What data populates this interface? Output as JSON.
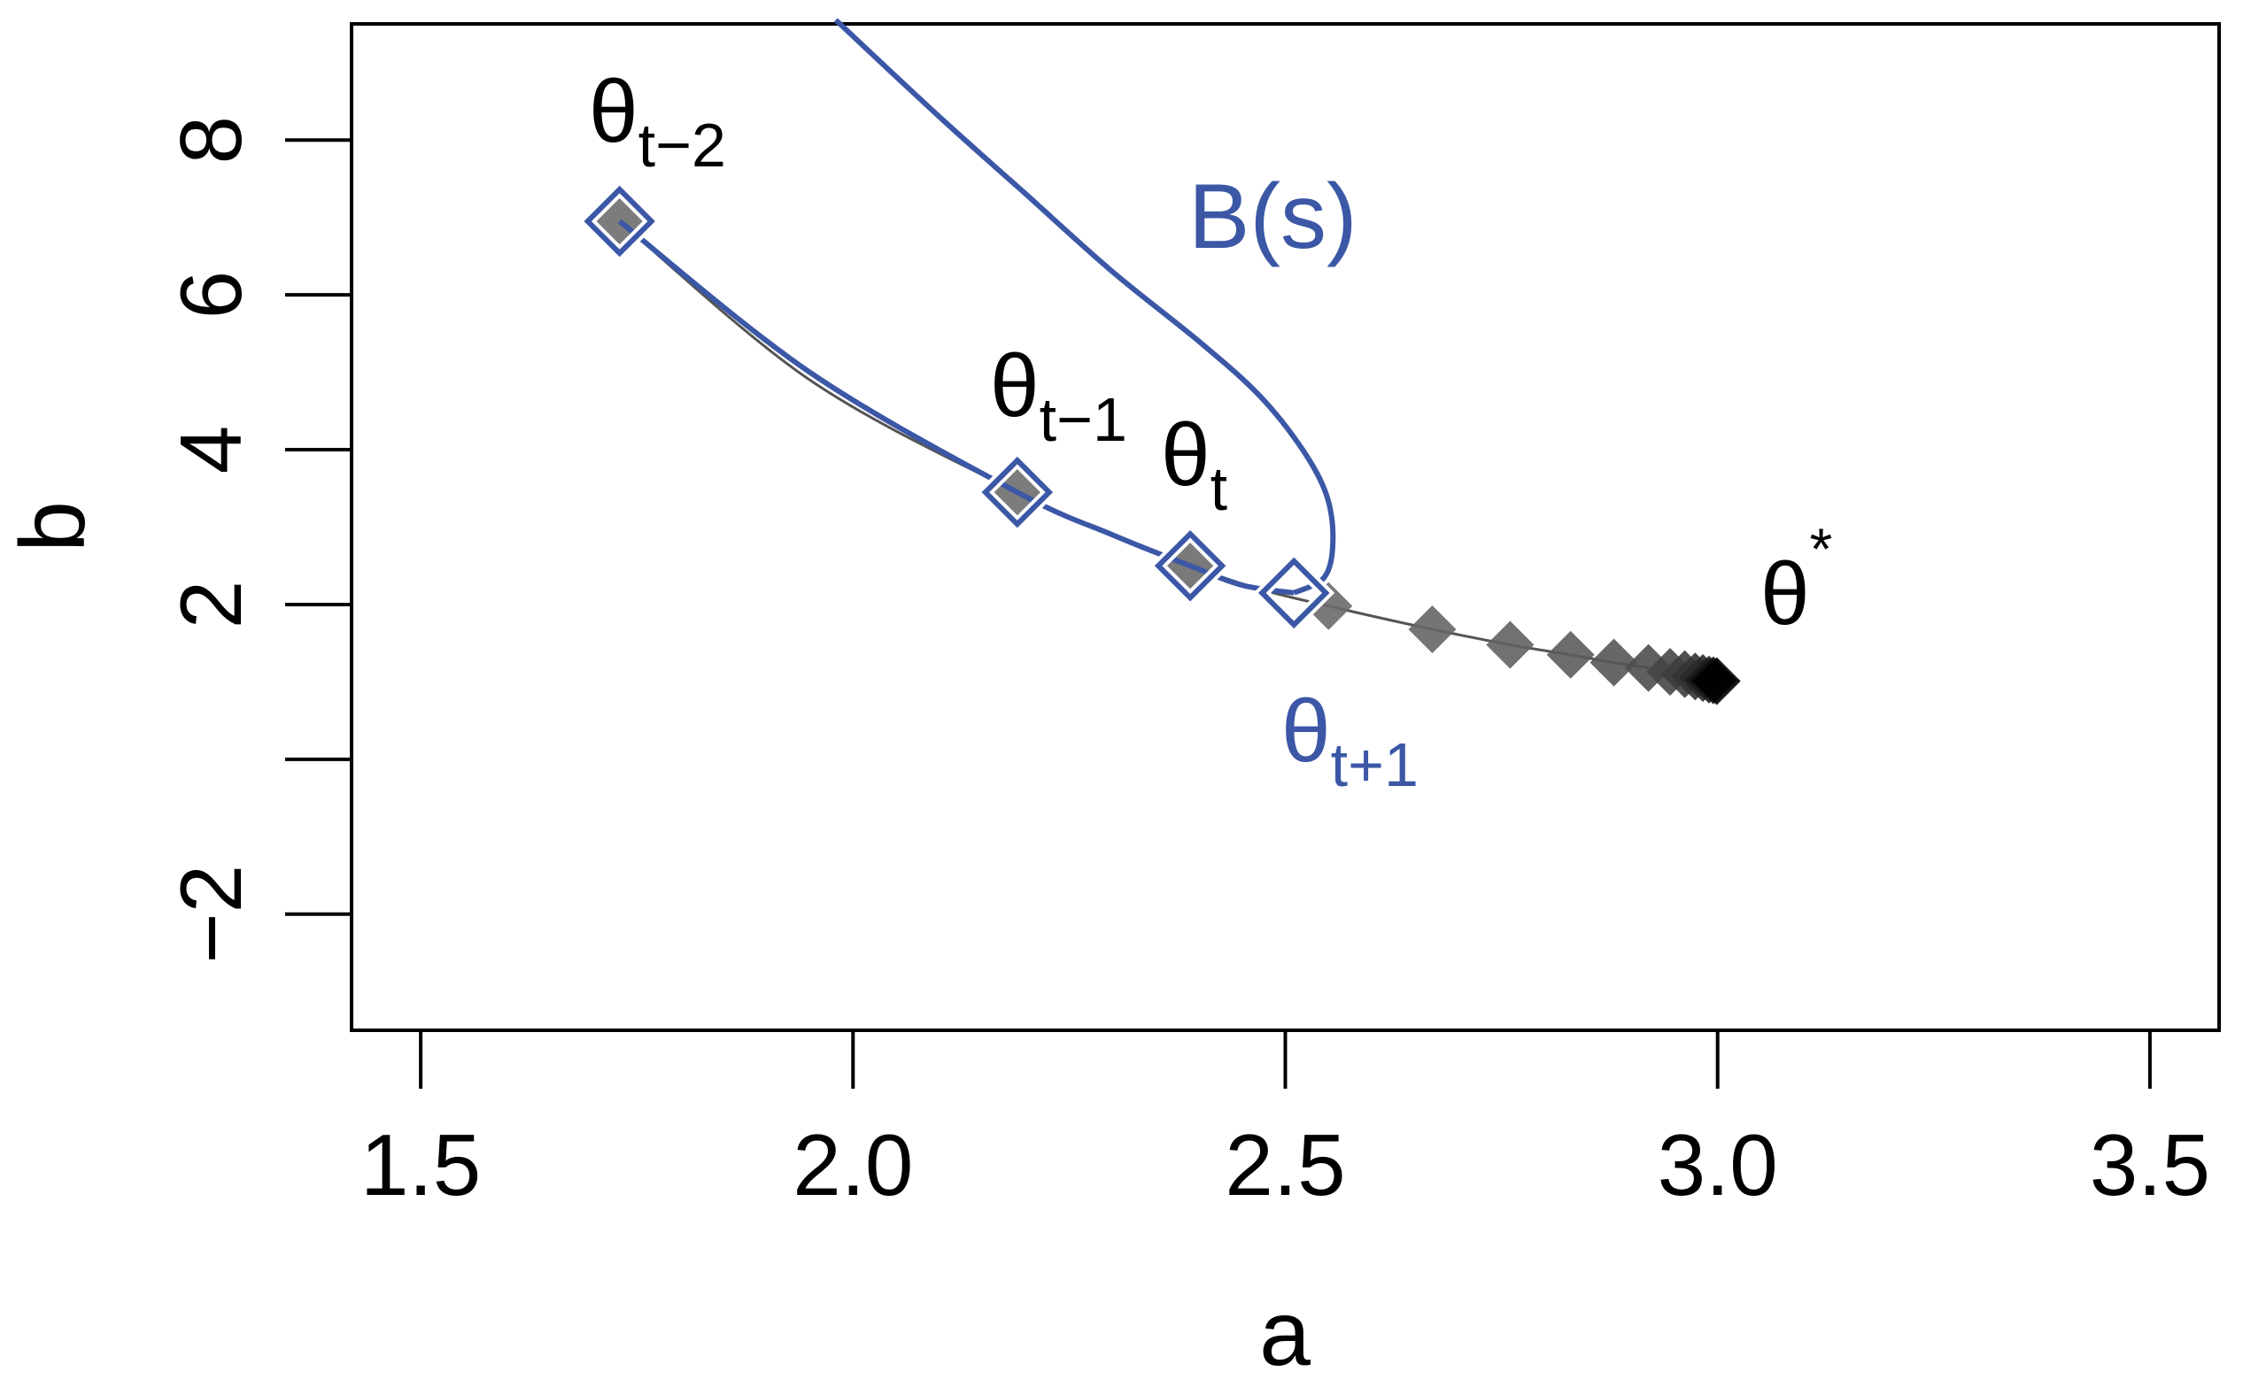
{
  "chart_data": {
    "type": "scatter",
    "title": "",
    "xlabel": "a",
    "ylabel": "b",
    "xlim": [
      1.42,
      3.58
    ],
    "ylim": [
      -3.5,
      9.5
    ],
    "x_ticks": [
      1.5,
      2.0,
      2.5,
      3.0,
      3.5
    ],
    "x_tick_labels": [
      "1.5",
      "2.0",
      "2.5",
      "3.0",
      "3.5"
    ],
    "y_ticks": [
      -2,
      0,
      2,
      4,
      6,
      8
    ],
    "y_tick_labels": [
      "−2",
      "",
      "2",
      "4",
      "6",
      "8"
    ],
    "grid": false,
    "colors": {
      "accent": "#3b57a6",
      "iterate": "#6e6e6e",
      "path_line": "#555555",
      "converged": "#000000"
    },
    "iterates": {
      "x": [
        1.73,
        2.19,
        2.39,
        2.55,
        2.67,
        2.76,
        2.83,
        2.88,
        2.92,
        2.945,
        2.962,
        2.974,
        2.983,
        2.99,
        2.995,
        2.999
      ],
      "y": [
        6.95,
        3.45,
        2.5,
        1.98,
        1.68,
        1.48,
        1.35,
        1.25,
        1.18,
        1.13,
        1.1,
        1.07,
        1.05,
        1.03,
        1.02,
        1.01
      ]
    },
    "trajectory": {
      "x": [
        1.73,
        1.95,
        2.19,
        2.3,
        2.39,
        2.47,
        2.55,
        2.67,
        2.76,
        2.83,
        2.88,
        2.92,
        2.96,
        3.0
      ],
      "y": [
        6.95,
        4.9,
        3.45,
        2.9,
        2.5,
        2.2,
        1.98,
        1.68,
        1.48,
        1.35,
        1.25,
        1.18,
        1.09,
        1.0
      ]
    },
    "highlighted_points": {
      "x": [
        1.73,
        2.19,
        2.39,
        2.51
      ],
      "y": [
        6.95,
        3.45,
        2.5,
        2.15
      ]
    },
    "extrapolation_curve": {
      "x": [
        1.73,
        1.95,
        2.19,
        2.3,
        2.39,
        2.45,
        2.51
      ],
      "y": [
        6.95,
        5.0,
        3.45,
        2.9,
        2.5,
        2.25,
        2.15
      ]
    },
    "boundary_curve": {
      "x": [
        2.51,
        2.545,
        2.555,
        2.548,
        2.52,
        2.47,
        2.4,
        2.3,
        2.2,
        2.1,
        1.98
      ],
      "y": [
        2.15,
        2.35,
        2.8,
        3.4,
        4.0,
        4.7,
        5.4,
        6.3,
        7.3,
        8.3,
        9.55
      ]
    },
    "annotations": {
      "theta_t_minus_2": {
        "base": "θ",
        "sub": "t−2"
      },
      "theta_t_minus_1": {
        "base": "θ",
        "sub": "t−1"
      },
      "theta_t": {
        "base": "θ",
        "sub": "t"
      },
      "theta_t_plus_1": {
        "base": "θ",
        "sub": "t+1"
      },
      "theta_star": {
        "base": "θ",
        "sup": "*"
      },
      "boundary_label": "B(s)"
    }
  }
}
